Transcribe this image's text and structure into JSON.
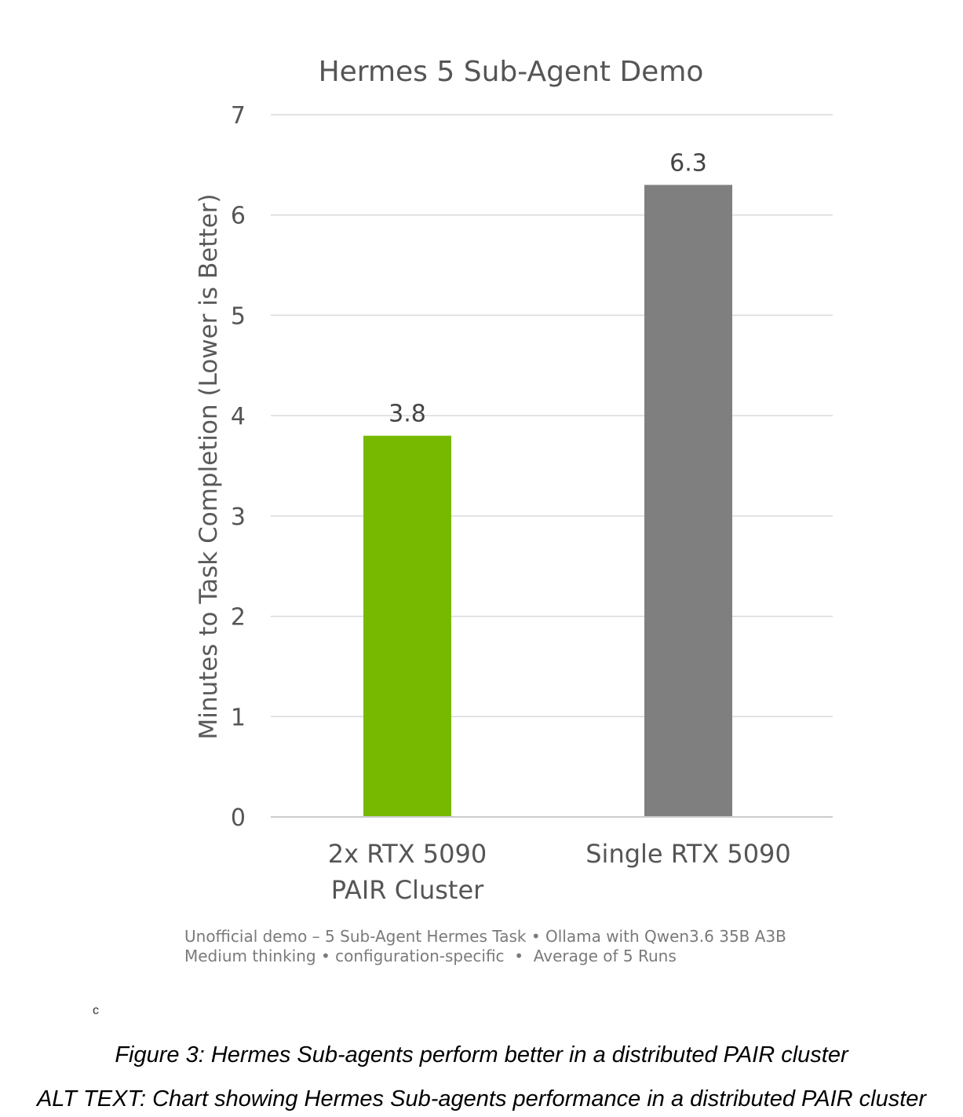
{
  "chart_data": {
    "type": "bar",
    "title": "Hermes 5 Sub-Agent Demo",
    "ylabel": "Minutes to Task Completion (Lower is Better)",
    "xlabel": "",
    "ylim": [
      0,
      7
    ],
    "yticks": [
      0,
      1,
      2,
      3,
      4,
      5,
      6,
      7
    ],
    "grid": true,
    "categories": [
      [
        "2x RTX 5090",
        "PAIR Cluster"
      ],
      [
        "Single RTX 5090"
      ]
    ],
    "values": [
      3.8,
      6.3
    ],
    "data_labels": [
      "3.8",
      "6.3"
    ],
    "colors": [
      "#76b900",
      "#7f7f7f"
    ]
  },
  "footnote": {
    "line1": "Unofficial demo – 5 Sub-Agent Hermes Task • Ollama with Qwen3.6 35B A3B",
    "line2": "Medium thinking • configuration-specific  •  Average of 5 Runs"
  },
  "stray_mark": "c",
  "captions": {
    "figure": "Figure 3: Hermes Sub-agents perform better in a distributed PAIR cluster",
    "alt_text": "ALT TEXT: Chart showing Hermes Sub-agents performance in a distributed PAIR cluster"
  }
}
